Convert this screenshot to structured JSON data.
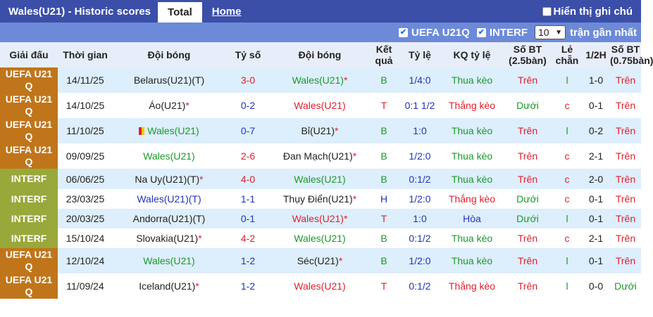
{
  "header": {
    "title": "Wales(U21) - Historic scores",
    "tab_total": "Total",
    "tab_home": "Home",
    "translate_label": "Hiển thị ghi chú"
  },
  "filters": {
    "uefa": "UEFA U21Q",
    "interf": "INTERF",
    "count_value": "10",
    "recent_label": "trận gần nhất"
  },
  "columns": [
    "Giải đấu",
    "Thời gian",
    "Đội bóng",
    "Tỷ số",
    "Đội bóng",
    "Kết quả",
    "Tỷ lệ",
    "KQ tỷ lệ",
    "Số BT (2.5bàn)",
    "Lẻ chẵn",
    "1/2H",
    "Số BT (0.75bàn)"
  ],
  "rows": [
    {
      "league": "UEFA U21 Q",
      "date": "14/11/25",
      "home": "Belarus(U21)(T)",
      "score": "3-0",
      "away": "Wales(U21)",
      "away_star": "*",
      "result": "B",
      "odds": "1/4:0",
      "odds_result": "Thua kèo",
      "ou25": "Trên",
      "oe": "l",
      "half": "1-0",
      "ou075": "Trên"
    },
    {
      "league": "UEFA U21 Q",
      "date": "14/10/25",
      "home": "Áo(U21)",
      "home_star": "*",
      "score": "0-2",
      "away": "Wales(U21)",
      "result": "T",
      "odds": "0:1 1/2",
      "odds_result": "Thắng kèo",
      "ou25": "Dưới",
      "oe": "c",
      "half": "0-1",
      "ou075": "Trên"
    },
    {
      "league": "UEFA U21 Q",
      "date": "11/10/25",
      "home": "Wales(U21)",
      "score": "0-7",
      "away": "Bỉ(U21)",
      "away_star": "*",
      "result": "B",
      "odds": "1:0",
      "odds_result": "Thua kèo",
      "ou25": "Trên",
      "oe": "l",
      "half": "0-2",
      "ou075": "Trên"
    },
    {
      "league": "UEFA U21 Q",
      "date": "09/09/25",
      "home": "Wales(U21)",
      "score": "2-6",
      "away": "Đan Mạch(U21)",
      "away_star": "*",
      "result": "B",
      "odds": "1/2:0",
      "odds_result": "Thua kèo",
      "ou25": "Trên",
      "oe": "c",
      "half": "2-1",
      "ou075": "Trên"
    },
    {
      "league": "INTERF",
      "date": "06/06/25",
      "home": "Na Uy(U21)(T)",
      "home_star": "*",
      "score": "4-0",
      "away": "Wales(U21)",
      "result": "B",
      "odds": "0:1/2",
      "odds_result": "Thua kèo",
      "ou25": "Trên",
      "oe": "c",
      "half": "2-0",
      "ou075": "Trên"
    },
    {
      "league": "INTERF",
      "date": "23/03/25",
      "home": "Wales(U21)(T)",
      "score": "1-1",
      "away": "Thụy Điển(U21)",
      "away_star": "*",
      "result": "H",
      "odds": "1/2:0",
      "odds_result": "Thắng kèo",
      "ou25": "Dưới",
      "oe": "c",
      "half": "0-1",
      "ou075": "Trên"
    },
    {
      "league": "INTERF",
      "date": "20/03/25",
      "home": "Andorra(U21)(T)",
      "score": "0-1",
      "away": "Wales(U21)",
      "away_star": "*",
      "result": "T",
      "odds": "1:0",
      "odds_result": "Hòa",
      "ou25": "Dưới",
      "oe": "l",
      "half": "0-1",
      "ou075": "Trên"
    },
    {
      "league": "INTERF",
      "date": "15/10/24",
      "home": "Slovakia(U21)",
      "home_star": "*",
      "score": "4-2",
      "away": "Wales(U21)",
      "result": "B",
      "odds": "0:1/2",
      "odds_result": "Thua kèo",
      "ou25": "Trên",
      "oe": "c",
      "half": "2-1",
      "ou075": "Trên"
    },
    {
      "league": "UEFA U21 Q",
      "date": "12/10/24",
      "home": "Wales(U21)",
      "score": "1-2",
      "away": "Séc(U21)",
      "away_star": "*",
      "result": "B",
      "odds": "1/2:0",
      "odds_result": "Thua kèo",
      "ou25": "Trên",
      "oe": "l",
      "half": "0-1",
      "ou075": "Trên"
    },
    {
      "league": "UEFA U21 Q",
      "date": "11/09/24",
      "home": "Iceland(U21)",
      "home_star": "*",
      "score": "1-2",
      "away": "Wales(U21)",
      "result": "T",
      "odds": "0:1/2",
      "odds_result": "Thắng kèo",
      "ou25": "Trên",
      "oe": "l",
      "half": "0-0",
      "ou075": "Dưới"
    }
  ]
}
